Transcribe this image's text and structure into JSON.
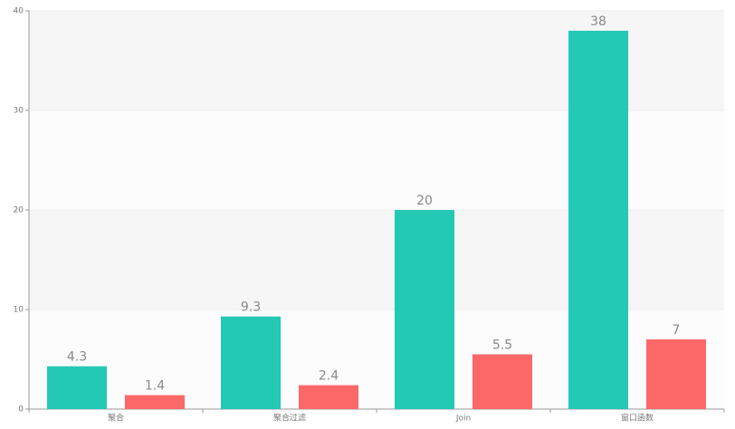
{
  "chart_data": {
    "type": "bar",
    "categories": [
      "聚合",
      "聚合过滤",
      "Join",
      "窗口函数"
    ],
    "series": [
      {
        "color": "#23c9b4",
        "values": [
          4.3,
          9.3,
          20,
          38
        ]
      },
      {
        "color": "#fc6868",
        "values": [
          1.4,
          2.4,
          5.5,
          7
        ]
      }
    ],
    "ylim": [
      0,
      40
    ],
    "yticks": [
      0,
      10,
      20,
      30,
      40
    ],
    "grid": true
  }
}
